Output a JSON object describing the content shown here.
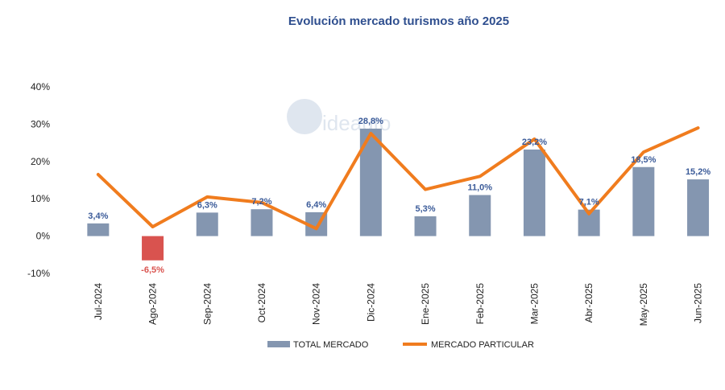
{
  "chart_data": {
    "type": "bar",
    "title": "Evolución mercado turismos año 2025",
    "categories": [
      "Jul-2024",
      "Ago-2024",
      "Sep-2024",
      "Oct-2024",
      "Nov-2024",
      "Dic-2024",
      "Ene-2025",
      "Feb-2025",
      "Mar-2025",
      "Abr-2025",
      "May-2025",
      "Jun-2025"
    ],
    "series": [
      {
        "name": "TOTAL MERCADO",
        "kind": "bar",
        "color": "#8496b0",
        "negative_color": "#d9534f",
        "values": [
          3.4,
          -6.5,
          6.3,
          7.2,
          6.4,
          28.8,
          5.3,
          11.0,
          23.2,
          7.1,
          18.5,
          15.2
        ],
        "labels": [
          "3,4%",
          "-6,5%",
          "6,3%",
          "7,2%",
          "6,4%",
          "28,8%",
          "5,3%",
          "11,0%",
          "23,2%",
          "7,1%",
          "18,5%",
          "15,2%"
        ]
      },
      {
        "name": "MERCADO PARTICULAR",
        "kind": "line",
        "color": "#f07c1e",
        "values": [
          16.5,
          2.5,
          10.5,
          9.0,
          2.0,
          27.5,
          12.5,
          16.0,
          26.0,
          6.0,
          22.5,
          29.0
        ]
      }
    ],
    "yticks": [
      "40%",
      "30%",
      "20%",
      "10%",
      "0%",
      "-10%"
    ],
    "ytick_values": [
      40,
      30,
      20,
      10,
      0,
      -10
    ],
    "ylim": [
      -10,
      40
    ],
    "legend_position": "bottom",
    "label_colors": {
      "positive": "#3b5b99",
      "negative": "#d9534f"
    },
    "ytick_negative_color": "#d9534f"
  },
  "watermark": {
    "text": "ideauto"
  }
}
